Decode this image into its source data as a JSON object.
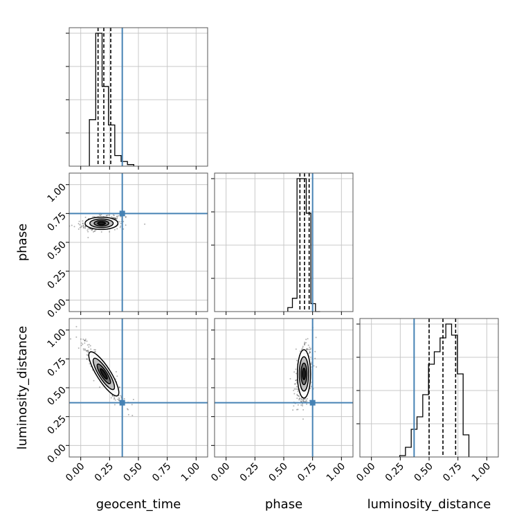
{
  "chart_data": {
    "type": "corner",
    "parameters": [
      "geocent_time",
      "phase",
      "luminosity_distance"
    ],
    "axis_range": [
      -0.1,
      1.1
    ],
    "ticks": [
      0.0,
      0.25,
      0.5,
      0.75,
      1.0
    ],
    "tick_labels": [
      "0.00",
      "0.25",
      "0.50",
      "0.75",
      "1.00"
    ],
    "grid": true,
    "truths": {
      "geocent_time": 0.36,
      "phase": 0.75,
      "luminosity_distance": 0.37
    },
    "truth_color": "#4682b4",
    "quantiles": {
      "geocent_time": [
        0.15,
        0.2,
        0.26
      ],
      "phase": [
        0.64,
        0.68,
        0.72
      ],
      "luminosity_distance": [
        0.5,
        0.62,
        0.73
      ]
    },
    "histograms": {
      "geocent_time": {
        "edges": [
          0.075,
          0.13,
          0.185,
          0.24,
          0.295,
          0.35,
          0.405,
          0.46
        ],
        "counts": [
          0.35,
          1.0,
          0.6,
          0.31,
          0.08,
          0.035,
          0.012
        ]
      },
      "phase": {
        "edges": [
          0.535,
          0.575,
          0.615,
          0.655,
          0.695,
          0.735,
          0.775,
          0.815
        ],
        "counts": [
          0.03,
          0.1,
          1.0,
          1.0,
          0.74,
          0.06,
          0.0
        ]
      },
      "luminosity_distance": {
        "edges": [
          0.245,
          0.295,
          0.345,
          0.395,
          0.445,
          0.495,
          0.545,
          0.595,
          0.645,
          0.695,
          0.745,
          0.795,
          0.845
        ],
        "counts": [
          0.01,
          0.07,
          0.2,
          0.29,
          0.45,
          0.67,
          0.76,
          0.86,
          0.96,
          0.88,
          0.6,
          0.16
        ]
      }
    },
    "scatter_pairs": {
      "phase_vs_geocent_time": {
        "center": [
          0.18,
          0.665
        ],
        "spread": [
          0.075,
          0.028
        ],
        "corr": 0.2
      },
      "luminosity_distance_vs_geocent_time": {
        "center": [
          0.2,
          0.62
        ],
        "spread": [
          0.07,
          0.11
        ],
        "corr": -0.92
      },
      "luminosity_distance_vs_phase": {
        "center": [
          0.675,
          0.62
        ],
        "spread": [
          0.03,
          0.11
        ],
        "corr": 0.25
      }
    }
  }
}
